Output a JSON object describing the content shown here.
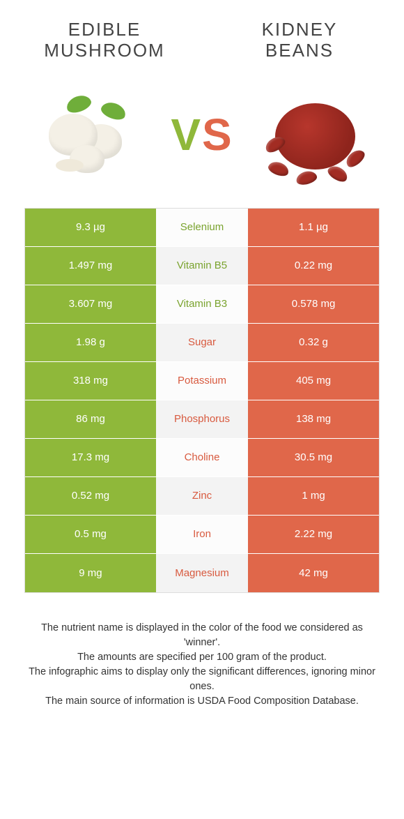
{
  "colors": {
    "green": "#8fb83a",
    "orange": "#e0674a",
    "green_text": "#7aa32e",
    "orange_text": "#d85a3f",
    "background": "#ffffff",
    "border": "#dddddd"
  },
  "typography": {
    "title_fontsize": 26,
    "cell_fontsize": 15,
    "vs_fontsize": 64,
    "footer_fontsize": 14.5
  },
  "left_food": {
    "title_line1": "EDIBLE",
    "title_line2": "MUSHROOM"
  },
  "right_food": {
    "title_line1": "KIDNEY",
    "title_line2": "BEANS"
  },
  "vs": {
    "v": "V",
    "s": "S"
  },
  "rows": [
    {
      "left": "9.3 µg",
      "nutrient": "Selenium",
      "right": "1.1 µg",
      "winner": "left"
    },
    {
      "left": "1.497 mg",
      "nutrient": "Vitamin B5",
      "right": "0.22 mg",
      "winner": "left"
    },
    {
      "left": "3.607 mg",
      "nutrient": "Vitamin B3",
      "right": "0.578 mg",
      "winner": "left"
    },
    {
      "left": "1.98 g",
      "nutrient": "Sugar",
      "right": "0.32 g",
      "winner": "right"
    },
    {
      "left": "318 mg",
      "nutrient": "Potassium",
      "right": "405 mg",
      "winner": "right"
    },
    {
      "left": "86 mg",
      "nutrient": "Phosphorus",
      "right": "138 mg",
      "winner": "right"
    },
    {
      "left": "17.3 mg",
      "nutrient": "Choline",
      "right": "30.5 mg",
      "winner": "right"
    },
    {
      "left": "0.52 mg",
      "nutrient": "Zinc",
      "right": "1 mg",
      "winner": "right"
    },
    {
      "left": "0.5 mg",
      "nutrient": "Iron",
      "right": "2.22 mg",
      "winner": "right"
    },
    {
      "left": "9 mg",
      "nutrient": "Magnesium",
      "right": "42 mg",
      "winner": "right"
    }
  ],
  "footer": {
    "line1": "The nutrient name is displayed in the color of the food we considered as 'winner'.",
    "line2": "The amounts are specified per 100 gram of the product.",
    "line3": "The infographic aims to display only the significant differences, ignoring minor ones.",
    "line4": "The main source of information is USDA Food Composition Database."
  }
}
